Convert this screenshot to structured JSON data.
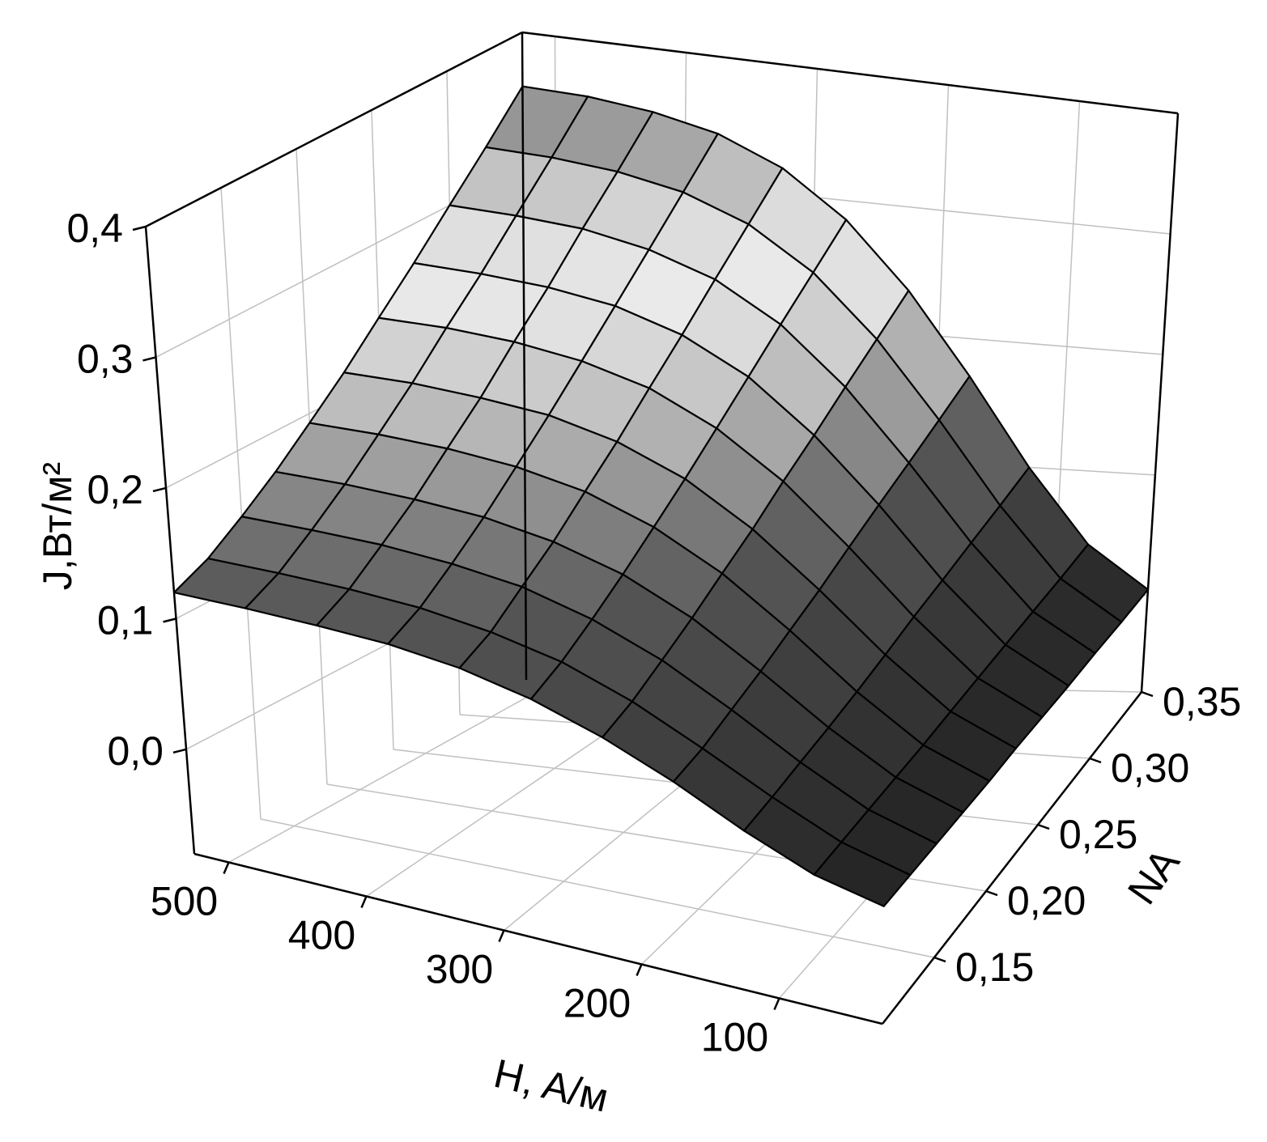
{
  "chart_data": {
    "type": "surface",
    "x_label": "H, A/м",
    "y_label": "NA",
    "z_label": "J,Вт/м²",
    "x": [
      25,
      75,
      125,
      175,
      225,
      275,
      325,
      375,
      425,
      475,
      525
    ],
    "y": [
      0.1,
      0.125,
      0.15,
      0.175,
      0.2,
      0.225,
      0.25,
      0.275,
      0.3,
      0.325,
      0.35
    ],
    "z": [
      [
        0.002,
        0.013,
        0.033,
        0.057,
        0.078,
        0.095,
        0.107,
        0.114,
        0.117,
        0.119,
        0.12
      ],
      [
        0.002,
        0.015,
        0.037,
        0.062,
        0.086,
        0.105,
        0.117,
        0.125,
        0.129,
        0.131,
        0.132
      ],
      [
        0.002,
        0.017,
        0.042,
        0.071,
        0.098,
        0.119,
        0.134,
        0.142,
        0.147,
        0.149,
        0.15
      ],
      [
        0.002,
        0.019,
        0.047,
        0.08,
        0.111,
        0.135,
        0.151,
        0.161,
        0.166,
        0.169,
        0.17
      ],
      [
        0.002,
        0.021,
        0.053,
        0.091,
        0.126,
        0.153,
        0.172,
        0.183,
        0.189,
        0.192,
        0.193
      ],
      [
        0.003,
        0.024,
        0.06,
        0.102,
        0.141,
        0.172,
        0.193,
        0.206,
        0.212,
        0.216,
        0.217
      ],
      [
        0.003,
        0.027,
        0.068,
        0.115,
        0.159,
        0.193,
        0.217,
        0.231,
        0.239,
        0.243,
        0.244
      ],
      [
        0.003,
        0.03,
        0.075,
        0.128,
        0.176,
        0.215,
        0.241,
        0.257,
        0.265,
        0.269,
        0.271
      ],
      [
        0.004,
        0.033,
        0.083,
        0.141,
        0.195,
        0.238,
        0.267,
        0.284,
        0.294,
        0.298,
        0.3
      ],
      [
        0.004,
        0.036,
        0.091,
        0.155,
        0.214,
        0.261,
        0.293,
        0.312,
        0.322,
        0.327,
        0.329
      ],
      [
        0.005,
        0.04,
        0.1,
        0.17,
        0.234,
        0.285,
        0.32,
        0.341,
        0.352,
        0.358,
        0.36
      ]
    ],
    "xlim": [
      25,
      525
    ],
    "ylim": [
      0.1,
      0.35
    ],
    "zlim": [
      -0.08,
      0.4
    ],
    "xticks": [
      100,
      200,
      300,
      400,
      500
    ],
    "yticks": [
      {
        "value": 0.15,
        "label": "0,15"
      },
      {
        "value": 0.2,
        "label": "0,20"
      },
      {
        "value": 0.25,
        "label": "0,25"
      },
      {
        "value": 0.3,
        "label": "0,30"
      },
      {
        "value": 0.35,
        "label": "0,35"
      }
    ],
    "zticks": [
      {
        "value": 0,
        "label": "0,0"
      },
      {
        "value": 0.1,
        "label": "0,1"
      },
      {
        "value": 0.2,
        "label": "0,2"
      },
      {
        "value": 0.3,
        "label": "0,3"
      },
      {
        "value": 0.4,
        "label": "0,4"
      }
    ],
    "grid": true
  }
}
